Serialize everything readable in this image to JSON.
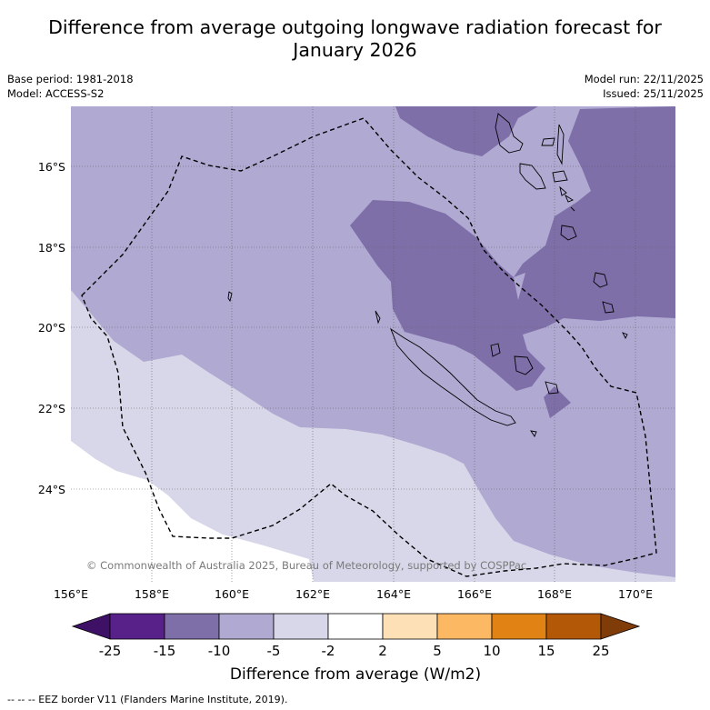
{
  "title_line1": "Difference from average outgoing longwave radiation forecast for",
  "title_line2": "January 2026",
  "base_period": "Base period: 1981-2018",
  "model": "Model: ACCESS-S2",
  "model_run": "Model run: 22/11/2025",
  "issued": "Issued: 25/11/2025",
  "copyright": "© Commonwealth of Australia 2025, Bureau of Meteorology, supported by COSPPac",
  "lat_labels": [
    "16°S",
    "18°S",
    "20°S",
    "22°S",
    "24°S"
  ],
  "lon_labels": [
    "156°E",
    "158°E",
    "160°E",
    "162°E",
    "164°E",
    "166°E",
    "168°E",
    "170°E"
  ],
  "colorbar": {
    "ticks": [
      "-25",
      "-15",
      "-10",
      "-5",
      "-2",
      "2",
      "5",
      "10",
      "15",
      "25"
    ],
    "colors": [
      "#3f1166",
      "#58218a",
      "#7e6fa9",
      "#b0a9d1",
      "#d7d7e9",
      "#ffffff",
      "#fee0b6",
      "#fdb863",
      "#e08214",
      "#b35806",
      "#7f3b08"
    ],
    "label": "Difference from average (W/m2)"
  },
  "footnote": "--  --  -- EEZ border V11 (Flanders Marine Institute, 2019)."
}
